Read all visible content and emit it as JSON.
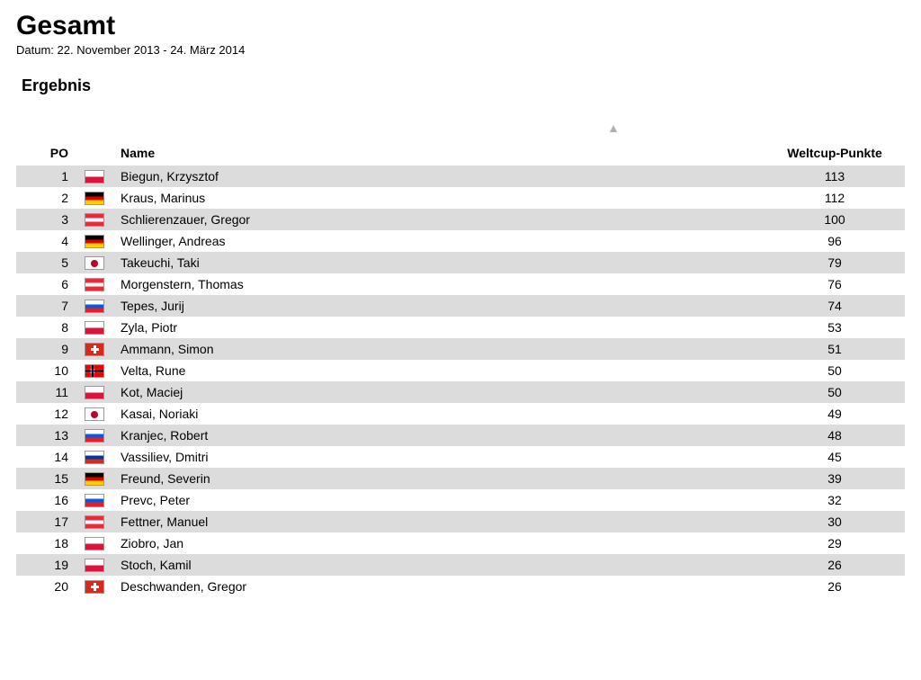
{
  "header": {
    "title": "Gesamt",
    "date_label": "Datum: 22. November 2013 - 24. März 2014",
    "subtitle": "Ergebnis"
  },
  "table": {
    "type": "table",
    "columns": {
      "po": "PO",
      "name": "Name",
      "points": "Weltcup-Punkte"
    },
    "row_colors": {
      "odd": "#dcdcdc",
      "even": "#ffffff"
    },
    "flag_classes": {
      "POL": "flag-pol",
      "GER": "flag-ger",
      "AUT": "flag-aut",
      "JPN": "flag-jpn",
      "SLO": "flag-slo",
      "SUI": "flag-sui",
      "NOR": "flag-nor",
      "RUS": "flag-rus"
    },
    "rows": [
      {
        "po": 1,
        "country": "POL",
        "name": "Biegun, Krzysztof",
        "points": 113
      },
      {
        "po": 2,
        "country": "GER",
        "name": "Kraus, Marinus",
        "points": 112
      },
      {
        "po": 3,
        "country": "AUT",
        "name": "Schlierenzauer, Gregor",
        "points": 100
      },
      {
        "po": 4,
        "country": "GER",
        "name": "Wellinger, Andreas",
        "points": 96
      },
      {
        "po": 5,
        "country": "JPN",
        "name": "Takeuchi, Taki",
        "points": 79
      },
      {
        "po": 6,
        "country": "AUT",
        "name": "Morgenstern, Thomas",
        "points": 76
      },
      {
        "po": 7,
        "country": "SLO",
        "name": "Tepes, Jurij",
        "points": 74
      },
      {
        "po": 8,
        "country": "POL",
        "name": "Zyla, Piotr",
        "points": 53
      },
      {
        "po": 9,
        "country": "SUI",
        "name": "Ammann, Simon",
        "points": 51
      },
      {
        "po": 10,
        "country": "NOR",
        "name": "Velta, Rune",
        "points": 50
      },
      {
        "po": 11,
        "country": "POL",
        "name": "Kot, Maciej",
        "points": 50
      },
      {
        "po": 12,
        "country": "JPN",
        "name": "Kasai, Noriaki",
        "points": 49
      },
      {
        "po": 13,
        "country": "SLO",
        "name": "Kranjec, Robert",
        "points": 48
      },
      {
        "po": 14,
        "country": "RUS",
        "name": "Vassiliev, Dmitri",
        "points": 45
      },
      {
        "po": 15,
        "country": "GER",
        "name": "Freund, Severin",
        "points": 39
      },
      {
        "po": 16,
        "country": "SLO",
        "name": "Prevc, Peter",
        "points": 32
      },
      {
        "po": 17,
        "country": "AUT",
        "name": "Fettner, Manuel",
        "points": 30
      },
      {
        "po": 18,
        "country": "POL",
        "name": "Ziobro, Jan",
        "points": 29
      },
      {
        "po": 19,
        "country": "POL",
        "name": "Stoch, Kamil",
        "points": 26
      },
      {
        "po": 20,
        "country": "SUI",
        "name": "Deschwanden, Gregor",
        "points": 26
      }
    ]
  }
}
